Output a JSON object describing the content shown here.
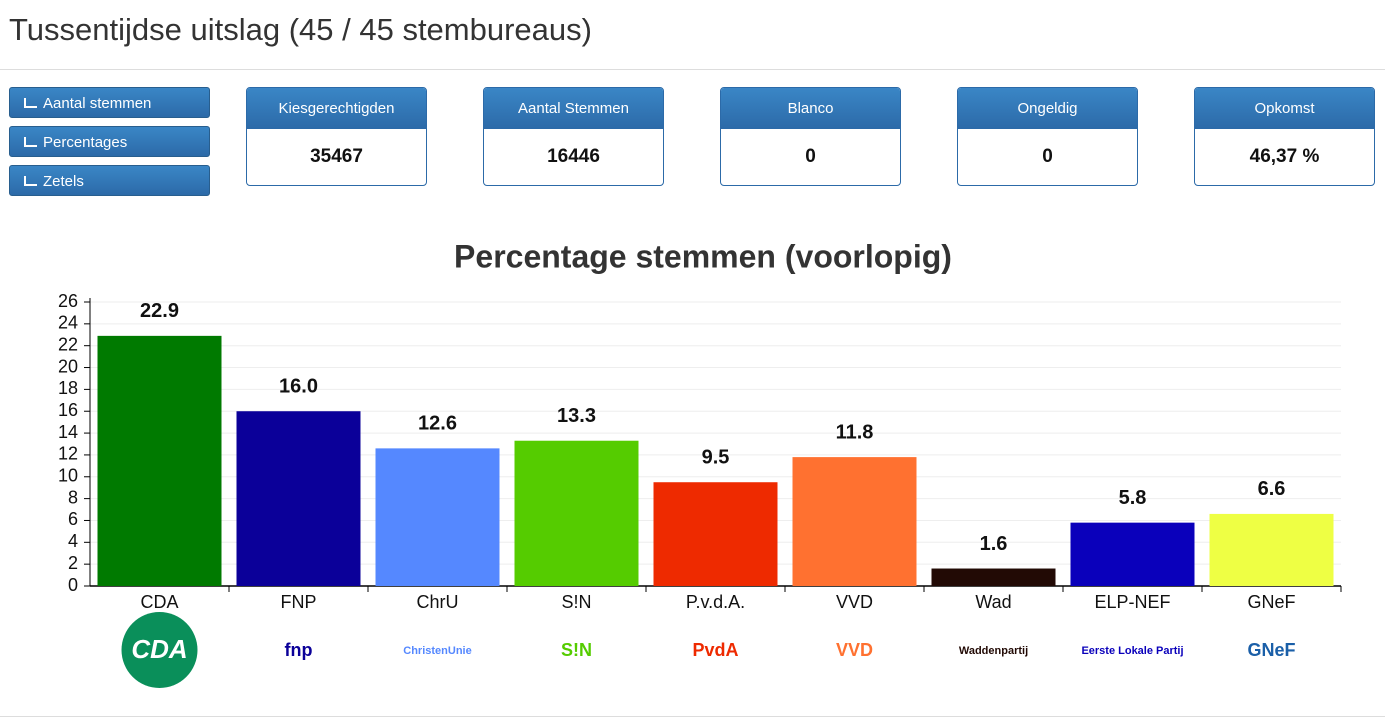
{
  "header": {
    "title": "Tussentijdse uitslag (45 / 45 stembureaus)"
  },
  "buttons": [
    "Aantal stemmen",
    "Percentages",
    "Zetels"
  ],
  "stats": [
    {
      "label": "Kiesgerechtigden",
      "value": "35467"
    },
    {
      "label": "Aantal Stemmen",
      "value": "16446"
    },
    {
      "label": "Blanco",
      "value": "0"
    },
    {
      "label": "Ongeldig",
      "value": "0"
    },
    {
      "label": "Opkomst",
      "value": "46,37 %"
    }
  ],
  "chart_data": {
    "type": "bar",
    "title": "Percentage stemmen (voorlopig)",
    "categories": [
      "CDA",
      "FNP",
      "ChrU",
      "S!N",
      "P.v.d.A.",
      "VVD",
      "Wad",
      "ELP-NEF",
      "GNeF"
    ],
    "values": [
      22.9,
      16,
      12.6,
      13.3,
      9.5,
      11.8,
      1.6,
      5.8,
      6.6
    ],
    "value_labels": [
      "22.9",
      "16.0",
      "12.6",
      "13.3",
      "9.5",
      "11.8",
      "1.6",
      "5.8",
      "6.6"
    ],
    "colors": [
      "#007a00",
      "#0b0099",
      "#5588ff",
      "#55cc00",
      "#ee2a00",
      "#ff7130",
      "#220a05",
      "#0a00bb",
      "#eeff44"
    ],
    "logos": [
      "CDA",
      "fnp",
      "ChristenUnie",
      "S!N",
      "PvdA",
      "VVD",
      "Waddenpartij",
      "Eerste Lokale Partij",
      "GNeF"
    ],
    "ylim": [
      0,
      26
    ],
    "yticks": [
      0,
      2,
      4,
      6,
      8,
      10,
      12,
      14,
      16,
      18,
      20,
      22,
      24,
      26
    ],
    "grid": true
  }
}
